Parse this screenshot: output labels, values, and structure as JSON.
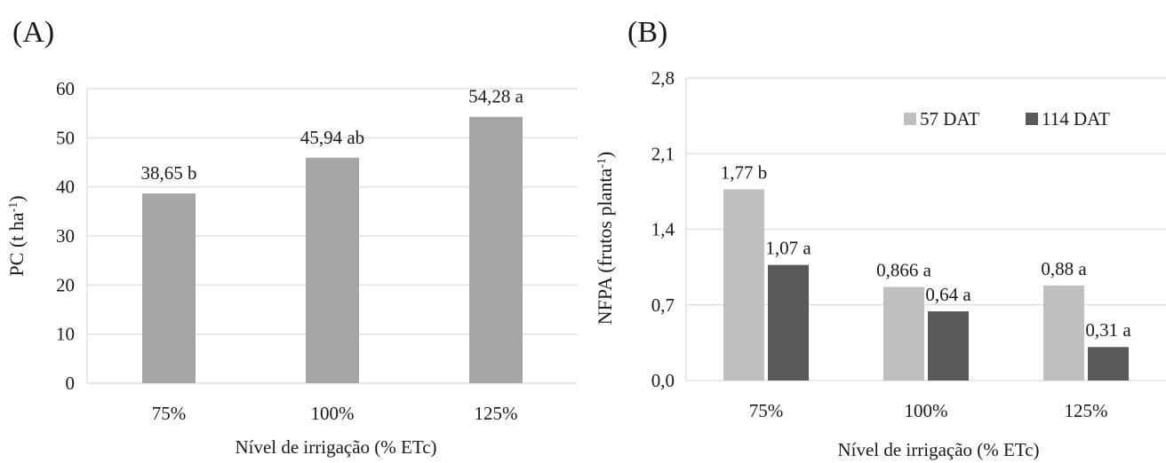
{
  "chart_data": [
    {
      "type": "bar",
      "panel_label": "(A)",
      "categories": [
        "75%",
        "100%",
        "125%"
      ],
      "values": [
        38.65,
        45.94,
        54.28
      ],
      "data_labels": [
        "38,65 b",
        "45,94 ab",
        "54,28 a"
      ],
      "xlabel": "Nível de irrigação (% ETc)",
      "ylabel": "PC (t ha-1)",
      "ylabel_parts": {
        "main": "PC (t ha",
        "sup": "-1",
        "end": ")"
      },
      "ylim": [
        0,
        60
      ],
      "yticks": [
        0,
        10,
        20,
        30,
        40,
        50,
        60
      ],
      "ytick_labels": [
        "0",
        "10",
        "20",
        "30",
        "40",
        "50",
        "60"
      ],
      "grid": true,
      "bar_color": "#a6a6a6"
    },
    {
      "type": "bar",
      "panel_label": "(B)",
      "categories": [
        "75%",
        "100%",
        "125%"
      ],
      "series": [
        {
          "name": "57 DAT",
          "color": "#bfbfbf",
          "values": [
            1.77,
            0.866,
            0.88
          ],
          "data_labels": [
            "1,77 b",
            "0,866 a",
            "0,88 a"
          ]
        },
        {
          "name": "114 DAT",
          "color": "#595959",
          "values": [
            1.07,
            0.64,
            0.31
          ],
          "data_labels": [
            "1,07 a",
            "0,64 a",
            "0,31 a"
          ]
        }
      ],
      "xlabel": "Nível de irrigação (% ETc)",
      "ylabel": "NFPA (frutos planta-1)",
      "ylabel_parts": {
        "main": "NFPA (frutos planta",
        "sup": "-1",
        "end": ")"
      },
      "ylim": [
        0,
        2.8
      ],
      "yticks": [
        0,
        0.7,
        1.4,
        2.1,
        2.8
      ],
      "ytick_labels": [
        "0,0",
        "0,7",
        "1,4",
        "2,1",
        "2,8"
      ],
      "grid": true,
      "legend_position": "top-right"
    }
  ]
}
